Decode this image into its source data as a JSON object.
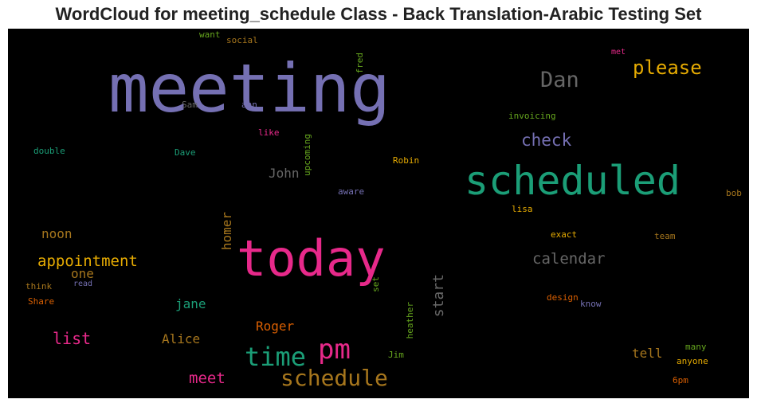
{
  "chart_data": {
    "type": "wordcloud",
    "title": "WordCloud for meeting_schedule Class - Back Translation-Arabic Testing Set",
    "words": [
      {
        "text": "meeting",
        "weight": 100,
        "color": "#7570b3",
        "vertical": false
      },
      {
        "text": "today",
        "weight": 78,
        "color": "#e7298a",
        "vertical": false
      },
      {
        "text": "scheduled",
        "weight": 70,
        "color": "#1b9e77",
        "vertical": false
      },
      {
        "text": "pm",
        "weight": 44,
        "color": "#e7298a",
        "vertical": false
      },
      {
        "text": "time",
        "weight": 40,
        "color": "#1b9e77",
        "vertical": false
      },
      {
        "text": "schedule",
        "weight": 34,
        "color": "#a6761d",
        "vertical": false
      },
      {
        "text": "Dan",
        "weight": 32,
        "color": "#666666",
        "vertical": false
      },
      {
        "text": "please",
        "weight": 30,
        "color": "#e6ab02",
        "vertical": false
      },
      {
        "text": "check",
        "weight": 24,
        "color": "#7570b3",
        "vertical": false
      },
      {
        "text": "appointment",
        "weight": 24,
        "color": "#e6ab02",
        "vertical": false
      },
      {
        "text": "calendar",
        "weight": 24,
        "color": "#666666",
        "vertical": false
      },
      {
        "text": "list",
        "weight": 24,
        "color": "#e7298a",
        "vertical": false
      },
      {
        "text": "meet",
        "weight": 22,
        "color": "#e7298a",
        "vertical": false
      },
      {
        "text": "start",
        "weight": 20,
        "color": "#666666",
        "vertical": true
      },
      {
        "text": "John",
        "weight": 18,
        "color": "#666666",
        "vertical": false
      },
      {
        "text": "jane",
        "weight": 18,
        "color": "#1b9e77",
        "vertical": false
      },
      {
        "text": "Alice",
        "weight": 18,
        "color": "#a6761d",
        "vertical": false
      },
      {
        "text": "Roger",
        "weight": 18,
        "color": "#d95f02",
        "vertical": false
      },
      {
        "text": "homer",
        "weight": 18,
        "color": "#a6761d",
        "vertical": true
      },
      {
        "text": "tell",
        "weight": 18,
        "color": "#a6761d",
        "vertical": false
      },
      {
        "text": "noon",
        "weight": 18,
        "color": "#a6761d",
        "vertical": false
      },
      {
        "text": "one",
        "weight": 18,
        "color": "#a6761d",
        "vertical": false
      },
      {
        "text": "invoicing",
        "weight": 12,
        "color": "#66a61e",
        "vertical": false
      },
      {
        "text": "double",
        "weight": 12,
        "color": "#1b9e77",
        "vertical": false
      },
      {
        "text": "Dave",
        "weight": 12,
        "color": "#1b9e77",
        "vertical": false
      },
      {
        "text": "Sam",
        "weight": 12,
        "color": "#666666",
        "vertical": false
      },
      {
        "text": "ann",
        "weight": 12,
        "color": "#7570b3",
        "vertical": false
      },
      {
        "text": "like",
        "weight": 12,
        "color": "#e7298a",
        "vertical": false
      },
      {
        "text": "upcoming",
        "weight": 12,
        "color": "#66a61e",
        "vertical": true
      },
      {
        "text": "fred",
        "weight": 12,
        "color": "#66a61e",
        "vertical": true
      },
      {
        "text": "want",
        "weight": 12,
        "color": "#66a61e",
        "vertical": false
      },
      {
        "text": "social",
        "weight": 12,
        "color": "#a6761d",
        "vertical": false
      },
      {
        "text": "met",
        "weight": 12,
        "color": "#e7298a",
        "vertical": false
      },
      {
        "text": "Robin",
        "weight": 12,
        "color": "#e6ab02",
        "vertical": false
      },
      {
        "text": "aware",
        "weight": 12,
        "color": "#7570b3",
        "vertical": false
      },
      {
        "text": "lisa",
        "weight": 12,
        "color": "#e6ab02",
        "vertical": false
      },
      {
        "text": "bob",
        "weight": 12,
        "color": "#a6761d",
        "vertical": false
      },
      {
        "text": "exact",
        "weight": 12,
        "color": "#e6ab02",
        "vertical": false
      },
      {
        "text": "team",
        "weight": 12,
        "color": "#a6761d",
        "vertical": false
      },
      {
        "text": "think",
        "weight": 12,
        "color": "#a6761d",
        "vertical": false
      },
      {
        "text": "read",
        "weight": 12,
        "color": "#7570b3",
        "vertical": false
      },
      {
        "text": "Share",
        "weight": 12,
        "color": "#d95f02",
        "vertical": false
      },
      {
        "text": "set",
        "weight": 12,
        "color": "#66a61e",
        "vertical": true
      },
      {
        "text": "heather",
        "weight": 12,
        "color": "#66a61e",
        "vertical": true
      },
      {
        "text": "design",
        "weight": 12,
        "color": "#d95f02",
        "vertical": false
      },
      {
        "text": "know",
        "weight": 12,
        "color": "#7570b3",
        "vertical": false
      },
      {
        "text": "Jim",
        "weight": 12,
        "color": "#66a61e",
        "vertical": false
      },
      {
        "text": "many",
        "weight": 12,
        "color": "#66a61e",
        "vertical": false
      },
      {
        "text": "anyone",
        "weight": 12,
        "color": "#e6ab02",
        "vertical": false
      },
      {
        "text": "6pm",
        "weight": 12,
        "color": "#d95f02",
        "vertical": false
      }
    ]
  }
}
